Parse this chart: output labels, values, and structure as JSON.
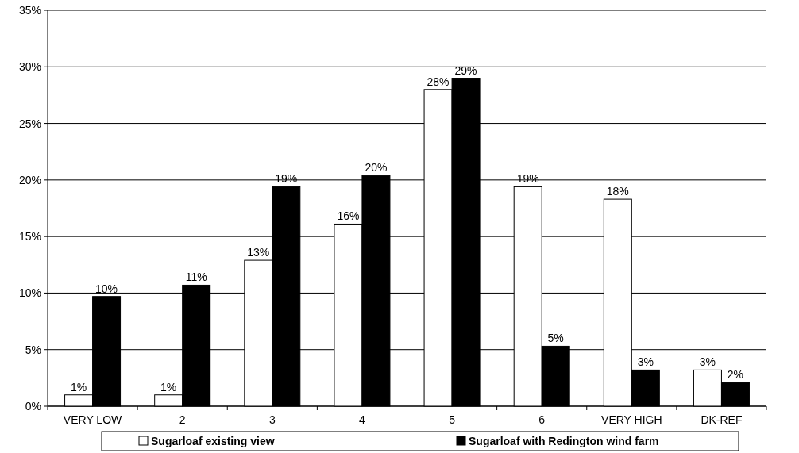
{
  "chart_data": {
    "type": "bar",
    "categories": [
      "VERY LOW",
      "2",
      "3",
      "4",
      "5",
      "6",
      "VERY HIGH",
      "DK-REF"
    ],
    "series": [
      {
        "name": "Sugarloaf existing view",
        "color": "#ffffff",
        "values": [
          1.0,
          1.0,
          12.9,
          16.1,
          28.0,
          19.4,
          18.3,
          3.2
        ],
        "value_labels": [
          "1%",
          "1%",
          "13%",
          "16%",
          "28%",
          "19%",
          "18%",
          "3%"
        ]
      },
      {
        "name": "Sugarloaf with Redington wind farm",
        "color": "#000000",
        "values": [
          9.7,
          10.7,
          19.4,
          20.4,
          29.0,
          5.3,
          3.2,
          2.1
        ],
        "value_labels": [
          "10%",
          "11%",
          "19%",
          "20%",
          "29%",
          "5%",
          "3%",
          "2%"
        ]
      }
    ],
    "ylim": [
      0,
      35
    ],
    "yticks": [
      {
        "value": 0,
        "label": "0%"
      },
      {
        "value": 5,
        "label": "5%"
      },
      {
        "value": 10,
        "label": "10%"
      },
      {
        "value": 15,
        "label": "15%"
      },
      {
        "value": 20,
        "label": "20%"
      },
      {
        "value": 25,
        "label": "25%"
      },
      {
        "value": 30,
        "label": "30%"
      },
      {
        "value": 35,
        "label": "35%"
      }
    ],
    "grid": "y",
    "legend": "bottom"
  }
}
